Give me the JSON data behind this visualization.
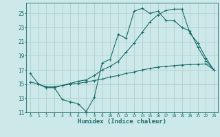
{
  "xlabel": "Humidex (Indice chaleur)",
  "bg_color": "#cce8e8",
  "grid_color": "#aacccc",
  "line_color": "#1a6b6b",
  "xlim": [
    -0.5,
    23.5
  ],
  "ylim": [
    11,
    26.5
  ],
  "xticks": [
    0,
    1,
    2,
    3,
    4,
    5,
    6,
    7,
    8,
    9,
    10,
    11,
    12,
    13,
    14,
    15,
    16,
    17,
    18,
    19,
    20,
    21,
    22,
    23
  ],
  "yticks": [
    11,
    13,
    15,
    17,
    19,
    21,
    23,
    25
  ],
  "line1_x": [
    0,
    1,
    2,
    3,
    4,
    5,
    6,
    7,
    8,
    9,
    10,
    11,
    12,
    13,
    14,
    15,
    16,
    17,
    18,
    19,
    20,
    21,
    22,
    23
  ],
  "line1_y": [
    16.5,
    15.0,
    14.5,
    14.5,
    12.8,
    12.5,
    12.2,
    11.1,
    13.1,
    18.0,
    18.5,
    22.0,
    21.5,
    25.3,
    25.7,
    25.0,
    25.3,
    24.0,
    24.0,
    23.0,
    22.5,
    20.2,
    18.3,
    17.0
  ],
  "line2_x": [
    0,
    1,
    2,
    3,
    4,
    5,
    6,
    7,
    8,
    9,
    10,
    11,
    12,
    13,
    14,
    15,
    16,
    17,
    18,
    19,
    20,
    21,
    22,
    23
  ],
  "line2_y": [
    15.3,
    15.0,
    14.6,
    14.6,
    14.8,
    15.0,
    15.1,
    15.3,
    15.5,
    15.7,
    16.0,
    16.2,
    16.5,
    16.7,
    17.0,
    17.2,
    17.4,
    17.5,
    17.6,
    17.7,
    17.75,
    17.8,
    17.85,
    17.0
  ],
  "line3_x": [
    1,
    2,
    3,
    4,
    5,
    6,
    7,
    8,
    9,
    10,
    11,
    12,
    13,
    14,
    15,
    16,
    17,
    18,
    19,
    20,
    21,
    22,
    23
  ],
  "line3_y": [
    15.0,
    14.5,
    14.5,
    14.8,
    15.1,
    15.4,
    15.6,
    16.2,
    17.0,
    17.5,
    18.2,
    19.5,
    20.8,
    22.3,
    23.8,
    24.8,
    25.4,
    25.6,
    25.6,
    22.2,
    20.8,
    18.7,
    17.0
  ]
}
